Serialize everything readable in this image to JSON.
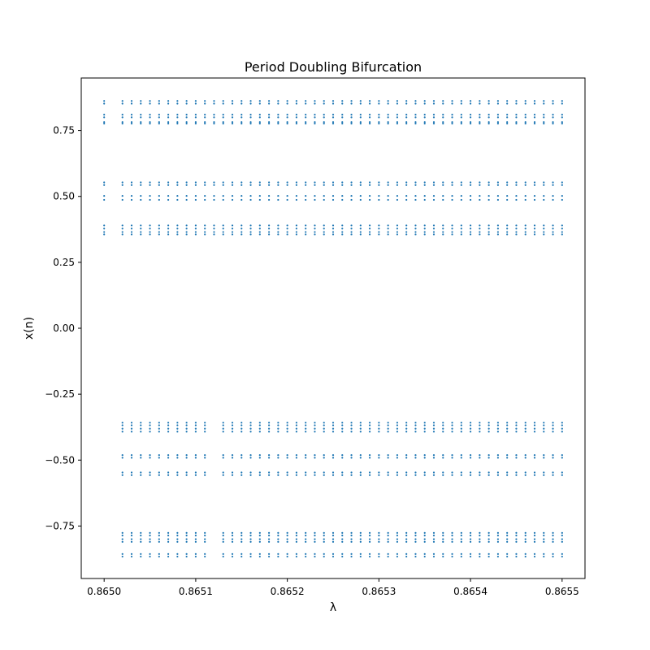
{
  "chart_data": {
    "type": "scatter",
    "title": "Period Doubling Bifurcation",
    "xlabel": "λ",
    "ylabel": "x(n)",
    "xlim": [
      0.864975,
      0.865525
    ],
    "ylim": [
      -0.949,
      0.949
    ],
    "xticks": [
      {
        "value": 0.865,
        "label": "0.8650"
      },
      {
        "value": 0.8651,
        "label": "0.8651"
      },
      {
        "value": 0.8652,
        "label": "0.8652"
      },
      {
        "value": 0.8653,
        "label": "0.8653"
      },
      {
        "value": 0.8654,
        "label": "0.8654"
      },
      {
        "value": 0.8655,
        "label": "0.8655"
      }
    ],
    "yticks": [
      {
        "value": 0.75,
        "label": "0.75"
      },
      {
        "value": 0.5,
        "label": "0.50"
      },
      {
        "value": 0.25,
        "label": "0.25"
      },
      {
        "value": 0.0,
        "label": "0.00"
      },
      {
        "value": -0.25,
        "label": "−0.25"
      },
      {
        "value": -0.5,
        "label": "−0.50"
      },
      {
        "value": -0.75,
        "label": "−0.75"
      }
    ],
    "grid": false,
    "legend": "none",
    "marker_color": "#1f77b4",
    "lambda_start": 0.865,
    "lambda_end": 0.8655,
    "lambda_step": 1e-05,
    "positive_branch_start": 0.865,
    "positive_missing_range": [
      0.86501,
      0.86502
    ],
    "negative_branch_start": 0.86502,
    "negative_missing_range": [
      0.86512,
      0.86513
    ],
    "positive_band_values": [
      0.862,
      0.852,
      0.81,
      0.8,
      0.782,
      0.776,
      0.553,
      0.543,
      0.502,
      0.487,
      0.39,
      0.378,
      0.365,
      0.356
    ],
    "negative_band_values": [
      -0.358,
      -0.368,
      -0.381,
      -0.392,
      -0.481,
      -0.491,
      -0.547,
      -0.557,
      -0.776,
      -0.786,
      -0.8,
      -0.81,
      -0.856,
      -0.866
    ]
  }
}
